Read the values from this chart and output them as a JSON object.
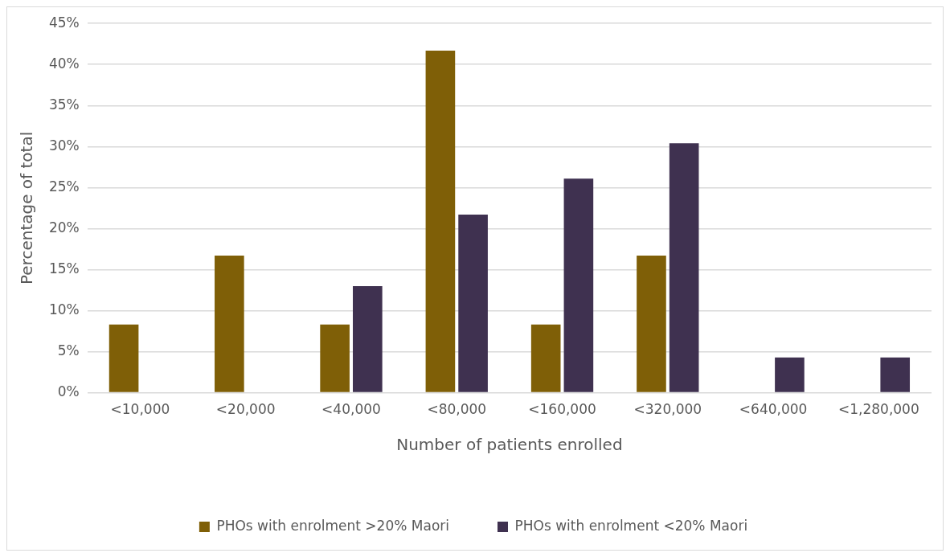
{
  "chart_data": {
    "type": "bar",
    "xlabel": "Number of patients enrolled",
    "ylabel": "Percentage of total",
    "categories": [
      "<10,000",
      "<20,000",
      "<40,000",
      "<80,000",
      "<160,000",
      "<320,000",
      "<640,000",
      "<1,280,000"
    ],
    "series": [
      {
        "name": "PHOs with enrolment >20% Maori",
        "color": "#7f5f07",
        "values": [
          8.3,
          16.7,
          8.3,
          41.7,
          8.3,
          16.7,
          0,
          0
        ]
      },
      {
        "name": "PHOs with enrolment <20% Maori",
        "color": "#3f3150",
        "values": [
          0,
          0,
          13.0,
          21.7,
          26.1,
          30.4,
          4.3,
          4.3
        ]
      }
    ],
    "ylim": [
      0,
      45
    ],
    "yticks": [
      {
        "value": 0,
        "label": "0%"
      },
      {
        "value": 5,
        "label": "5%"
      },
      {
        "value": 10,
        "label": "10%"
      },
      {
        "value": 15,
        "label": "15%"
      },
      {
        "value": 20,
        "label": "20%"
      },
      {
        "value": 25,
        "label": "25%"
      },
      {
        "value": 30,
        "label": "30%"
      },
      {
        "value": 35,
        "label": "35%"
      },
      {
        "value": 40,
        "label": "40%"
      },
      {
        "value": 45,
        "label": "45%"
      }
    ],
    "grid": "y",
    "legend": "bottom"
  }
}
